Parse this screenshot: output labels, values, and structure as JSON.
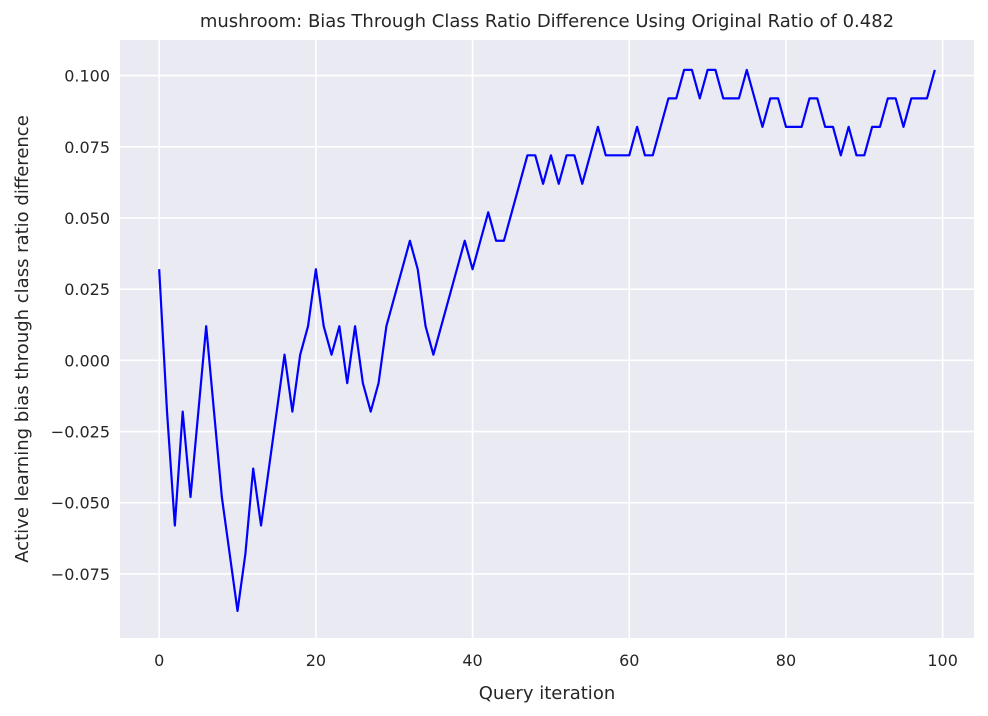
{
  "chart_data": {
    "type": "line",
    "title": "mushroom: Bias Through Class Ratio Difference Using Original Ratio of 0.482",
    "xlabel": "Query iteration",
    "ylabel": "Active learning bias through class ratio difference",
    "xlim": [
      -5,
      104
    ],
    "ylim": [
      -0.0975,
      0.1125
    ],
    "xticks": [
      0,
      20,
      40,
      60,
      80,
      100
    ],
    "xtick_labels": [
      "0",
      "20",
      "40",
      "60",
      "80",
      "100"
    ],
    "yticks": [
      -0.075,
      -0.05,
      -0.025,
      0.0,
      0.025,
      0.05,
      0.075,
      0.1
    ],
    "ytick_labels": [
      "−0.075",
      "−0.050",
      "−0.025",
      "0.000",
      "0.025",
      "0.050",
      "0.075",
      "0.100"
    ],
    "grid": true,
    "background": "#eaeaf2",
    "grid_color": "#ffffff",
    "series": [
      {
        "color": "#0000ff",
        "x": [
          0,
          1,
          2,
          3,
          4,
          5,
          6,
          7,
          8,
          9,
          10,
          11,
          12,
          13,
          14,
          15,
          16,
          17,
          18,
          19,
          20,
          21,
          22,
          23,
          24,
          25,
          26,
          27,
          28,
          29,
          30,
          31,
          32,
          33,
          34,
          35,
          36,
          37,
          38,
          39,
          40,
          41,
          42,
          43,
          44,
          45,
          46,
          47,
          48,
          49,
          50,
          51,
          52,
          53,
          54,
          55,
          56,
          57,
          58,
          59,
          60,
          61,
          62,
          63,
          64,
          65,
          66,
          67,
          68,
          69,
          70,
          71,
          72,
          73,
          74,
          75,
          76,
          77,
          78,
          79,
          80,
          81,
          82,
          83,
          84,
          85,
          86,
          87,
          88,
          89,
          90,
          91,
          92,
          93,
          94,
          95,
          96,
          97,
          98,
          99
        ],
        "values": [
          0.032,
          -0.018,
          -0.058,
          -0.018,
          -0.048,
          -0.018,
          0.012,
          -0.018,
          -0.048,
          -0.068,
          -0.088,
          -0.068,
          -0.038,
          -0.058,
          -0.038,
          -0.018,
          0.002,
          -0.018,
          0.002,
          0.012,
          0.032,
          0.012,
          0.002,
          0.012,
          -0.008,
          0.012,
          -0.008,
          -0.018,
          -0.008,
          0.012,
          0.022,
          0.032,
          0.042,
          0.032,
          0.012,
          0.002,
          0.012,
          0.022,
          0.032,
          0.042,
          0.032,
          0.042,
          0.052,
          0.042,
          0.042,
          0.052,
          0.062,
          0.072,
          0.072,
          0.062,
          0.072,
          0.062,
          0.072,
          0.072,
          0.062,
          0.072,
          0.082,
          0.072,
          0.072,
          0.072,
          0.072,
          0.082,
          0.072,
          0.072,
          0.082,
          0.092,
          0.092,
          0.102,
          0.102,
          0.092,
          0.102,
          0.102,
          0.092,
          0.092,
          0.092,
          0.102,
          0.092,
          0.082,
          0.092,
          0.092,
          0.082,
          0.082,
          0.082,
          0.092,
          0.092,
          0.082,
          0.082,
          0.072,
          0.082,
          0.072,
          0.072,
          0.082,
          0.082,
          0.092,
          0.092,
          0.082,
          0.092,
          0.092,
          0.092,
          0.102
        ]
      }
    ]
  }
}
